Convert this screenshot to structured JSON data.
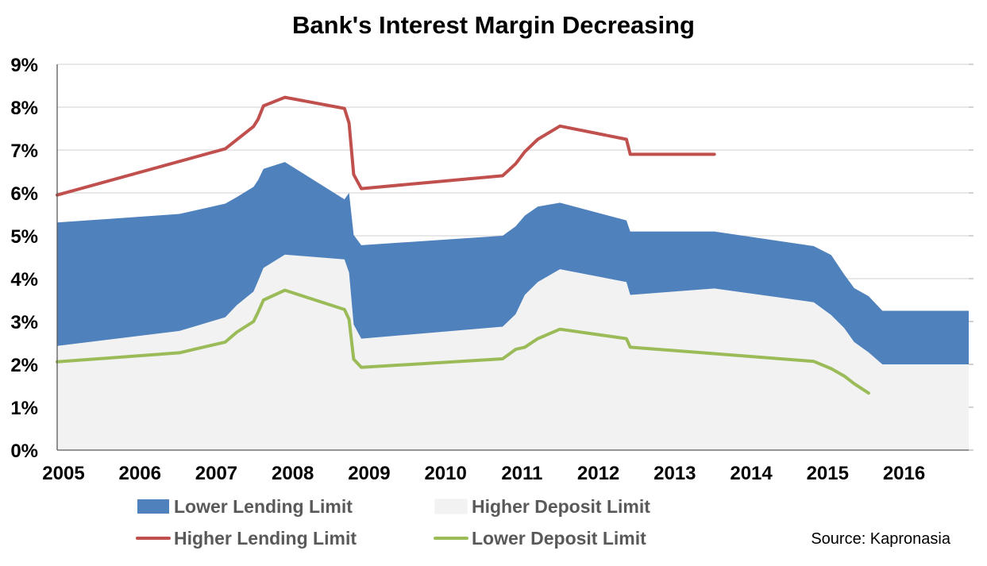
{
  "chart_data": {
    "type": "area",
    "title": "Bank's Interest Margin Decreasing",
    "xlabel": "",
    "ylabel": "",
    "xlim": [
      2005,
      2016.93
    ],
    "ylim": [
      0,
      9
    ],
    "x_ticks": [
      {
        "value": 2005,
        "label": "2005"
      },
      {
        "value": 2006,
        "label": "2006"
      },
      {
        "value": 2007,
        "label": "2007"
      },
      {
        "value": 2008,
        "label": "2008"
      },
      {
        "value": 2009,
        "label": "2009"
      },
      {
        "value": 2010,
        "label": "2010"
      },
      {
        "value": 2011,
        "label": "2011"
      },
      {
        "value": 2012,
        "label": "2012"
      },
      {
        "value": 2013,
        "label": "2013"
      },
      {
        "value": 2014,
        "label": "2014"
      },
      {
        "value": 2015,
        "label": "2015"
      },
      {
        "value": 2016,
        "label": "2016"
      }
    ],
    "y_ticks": [
      {
        "value": 0,
        "label": "0%"
      },
      {
        "value": 1,
        "label": "1%"
      },
      {
        "value": 2,
        "label": "2%"
      },
      {
        "value": 3,
        "label": "3%"
      },
      {
        "value": 4,
        "label": "4%"
      },
      {
        "value": 5,
        "label": "5%"
      },
      {
        "value": 6,
        "label": "6%"
      },
      {
        "value": 7,
        "label": "7%"
      },
      {
        "value": 8,
        "label": "8%"
      },
      {
        "value": 9,
        "label": "9%"
      }
    ],
    "grid": true,
    "legend_position": "bottom",
    "series": [
      {
        "name": "Higher Deposit Limit",
        "kind": "area",
        "color": "#f2f2f2",
        "points": [
          [
            2005.0,
            2.43
          ],
          [
            2006.6,
            2.78
          ],
          [
            2007.2,
            3.1
          ],
          [
            2007.35,
            3.38
          ],
          [
            2007.57,
            3.7
          ],
          [
            2007.63,
            3.95
          ],
          [
            2007.7,
            4.25
          ],
          [
            2007.98,
            4.56
          ],
          [
            2008.76,
            4.45
          ],
          [
            2008.82,
            4.14
          ],
          [
            2008.88,
            2.93
          ],
          [
            2008.98,
            2.6
          ],
          [
            2010.83,
            2.88
          ],
          [
            2011.0,
            3.17
          ],
          [
            2011.12,
            3.62
          ],
          [
            2011.29,
            3.92
          ],
          [
            2011.58,
            4.22
          ],
          [
            2012.45,
            3.92
          ],
          [
            2012.5,
            3.62
          ],
          [
            2013.6,
            3.77
          ],
          [
            2014.9,
            3.45
          ],
          [
            2015.13,
            3.15
          ],
          [
            2015.3,
            2.85
          ],
          [
            2015.43,
            2.52
          ],
          [
            2015.62,
            2.28
          ],
          [
            2015.8,
            2.0
          ],
          [
            2016.93,
            2.0
          ]
        ]
      },
      {
        "name": "Lower Lending Limit",
        "kind": "area",
        "color": "#4f81bd",
        "points": [
          [
            2005.0,
            5.31
          ],
          [
            2006.6,
            5.51
          ],
          [
            2007.2,
            5.75
          ],
          [
            2007.35,
            5.9
          ],
          [
            2007.57,
            6.14
          ],
          [
            2007.63,
            6.3
          ],
          [
            2007.7,
            6.56
          ],
          [
            2007.98,
            6.72
          ],
          [
            2008.76,
            5.85
          ],
          [
            2008.82,
            6.0
          ],
          [
            2008.88,
            5.02
          ],
          [
            2008.98,
            4.78
          ],
          [
            2010.83,
            5.0
          ],
          [
            2011.0,
            5.22
          ],
          [
            2011.12,
            5.47
          ],
          [
            2011.29,
            5.68
          ],
          [
            2011.58,
            5.77
          ],
          [
            2012.45,
            5.36
          ],
          [
            2012.5,
            5.1
          ],
          [
            2013.6,
            5.1
          ],
          [
            2014.9,
            4.76
          ],
          [
            2015.13,
            4.55
          ],
          [
            2015.3,
            4.1
          ],
          [
            2015.43,
            3.78
          ],
          [
            2015.62,
            3.59
          ],
          [
            2015.8,
            3.25
          ],
          [
            2016.93,
            3.25
          ]
        ]
      },
      {
        "name": "Higher Lending Limit",
        "kind": "line",
        "color": "#c0504d",
        "points": [
          [
            2005.0,
            5.95
          ],
          [
            2007.2,
            7.03
          ],
          [
            2007.57,
            7.55
          ],
          [
            2007.63,
            7.72
          ],
          [
            2007.7,
            8.03
          ],
          [
            2007.98,
            8.23
          ],
          [
            2008.76,
            7.97
          ],
          [
            2008.82,
            7.63
          ],
          [
            2008.88,
            6.43
          ],
          [
            2008.98,
            6.1
          ],
          [
            2010.83,
            6.4
          ],
          [
            2011.0,
            6.68
          ],
          [
            2011.12,
            6.96
          ],
          [
            2011.29,
            7.25
          ],
          [
            2011.58,
            7.56
          ],
          [
            2012.45,
            7.25
          ],
          [
            2012.5,
            6.9
          ],
          [
            2013.6,
            6.9
          ]
        ]
      },
      {
        "name": "Lower Deposit Limit",
        "kind": "line",
        "color": "#9bbb59",
        "points": [
          [
            2005.0,
            2.06
          ],
          [
            2006.6,
            2.27
          ],
          [
            2007.2,
            2.52
          ],
          [
            2007.35,
            2.75
          ],
          [
            2007.57,
            3.0
          ],
          [
            2007.63,
            3.22
          ],
          [
            2007.7,
            3.5
          ],
          [
            2007.98,
            3.73
          ],
          [
            2008.76,
            3.28
          ],
          [
            2008.82,
            3.05
          ],
          [
            2008.88,
            2.12
          ],
          [
            2008.98,
            1.93
          ],
          [
            2010.83,
            2.13
          ],
          [
            2011.0,
            2.35
          ],
          [
            2011.12,
            2.4
          ],
          [
            2011.29,
            2.6
          ],
          [
            2011.58,
            2.82
          ],
          [
            2012.45,
            2.6
          ],
          [
            2012.5,
            2.4
          ],
          [
            2013.6,
            2.25
          ],
          [
            2014.9,
            2.07
          ],
          [
            2015.13,
            1.9
          ],
          [
            2015.3,
            1.73
          ],
          [
            2015.43,
            1.55
          ],
          [
            2015.62,
            1.33
          ]
        ]
      }
    ],
    "legend": [
      {
        "name": "Lower Lending Limit",
        "marker": "box",
        "color": "#4f81bd"
      },
      {
        "name": "Higher Deposit Limit",
        "marker": "box",
        "color": "#f2f2f2"
      },
      {
        "name": "Higher Lending Limit",
        "marker": "line",
        "color": "#c0504d"
      },
      {
        "name": "Lower Deposit Limit",
        "marker": "line",
        "color": "#9bbb59"
      }
    ],
    "source": "Source: Kapronasia"
  }
}
